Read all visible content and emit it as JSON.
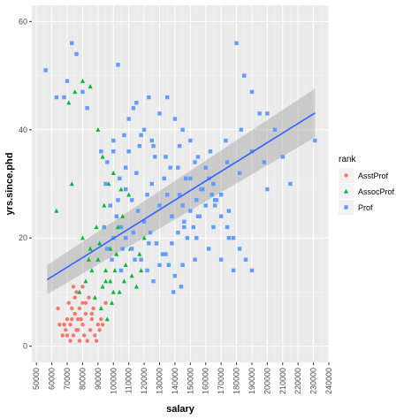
{
  "chart_data": {
    "type": "scatter",
    "xlabel": "salary",
    "ylabel": "yrs.since.phd",
    "xlim": [
      47000,
      240000
    ],
    "ylim": [
      -3,
      63
    ],
    "x_ticks": [
      "50000",
      "60000",
      "70000",
      "80000",
      "90000",
      "100000",
      "110000",
      "120000",
      "130000",
      "140000",
      "150000",
      "160000",
      "170000",
      "180000",
      "190000",
      "200000",
      "210000",
      "220000",
      "230000",
      "240000"
    ],
    "y_ticks": [
      "0",
      "20",
      "40",
      "60"
    ],
    "grid": true,
    "background": "#ebebeb",
    "legend": {
      "title": "rank",
      "position": "right",
      "entries": [
        {
          "label": "AsstProf",
          "color": "#F8766D",
          "shape": "circle"
        },
        {
          "label": "AssocProf",
          "color": "#00BA38",
          "shape": "triangle"
        },
        {
          "label": "Prof",
          "color": "#619CFF",
          "shape": "square"
        }
      ]
    },
    "trend": {
      "method": "lm",
      "color": "#3366FF",
      "x": [
        57000,
        231000
      ],
      "y": [
        12.3,
        43.1
      ],
      "ci_lower": [
        9.6,
        38.6
      ],
      "ci_upper": [
        15.0,
        47.6
      ]
    },
    "series": [
      {
        "name": "AsstProf",
        "color": "#F8766D",
        "shape": "circle",
        "points": [
          [
            72000,
            1
          ],
          [
            74000,
            2
          ],
          [
            77000,
            3
          ],
          [
            80000,
            4
          ],
          [
            70000,
            5
          ],
          [
            75000,
            6
          ],
          [
            78000,
            7
          ],
          [
            82000,
            8
          ],
          [
            85000,
            3
          ],
          [
            88000,
            2
          ],
          [
            90000,
            4
          ],
          [
            79000,
            5
          ],
          [
            73000,
            7
          ],
          [
            71000,
            8
          ],
          [
            76000,
            10
          ],
          [
            80000,
            11
          ],
          [
            74000,
            11
          ],
          [
            86000,
            6
          ],
          [
            92000,
            5
          ],
          [
            95000,
            8
          ],
          [
            83000,
            1
          ],
          [
            81000,
            2
          ],
          [
            87000,
            7
          ],
          [
            89000,
            1
          ],
          [
            69000,
            3
          ],
          [
            68000,
            4
          ],
          [
            70000,
            2
          ],
          [
            84000,
            9
          ],
          [
            91000,
            3
          ],
          [
            78000,
            1
          ],
          [
            72000,
            4
          ],
          [
            76000,
            3
          ],
          [
            64000,
            7
          ],
          [
            65000,
            4
          ],
          [
            67000,
            2
          ],
          [
            73000,
            5
          ],
          [
            75000,
            9
          ],
          [
            80000,
            8
          ],
          [
            86000,
            5
          ],
          [
            93000,
            4
          ],
          [
            82000,
            6
          ],
          [
            77000,
            5
          ]
        ]
      },
      {
        "name": "AssocProf",
        "color": "#00BA38",
        "shape": "triangle",
        "points": [
          [
            63000,
            25
          ],
          [
            71000,
            45
          ],
          [
            75000,
            47
          ],
          [
            80000,
            49
          ],
          [
            85000,
            48
          ],
          [
            90000,
            40
          ],
          [
            93000,
            35
          ],
          [
            97000,
            30
          ],
          [
            100000,
            32
          ],
          [
            105000,
            29
          ],
          [
            110000,
            28
          ],
          [
            73000,
            30
          ],
          [
            80000,
            20
          ],
          [
            85000,
            18
          ],
          [
            90000,
            16
          ],
          [
            95000,
            14
          ],
          [
            98000,
            12
          ],
          [
            100000,
            10
          ],
          [
            103000,
            22
          ],
          [
            108000,
            15
          ],
          [
            112000,
            13
          ],
          [
            115000,
            11
          ],
          [
            88000,
            9
          ],
          [
            92000,
            7
          ],
          [
            96000,
            5
          ],
          [
            99000,
            8
          ],
          [
            104000,
            10
          ],
          [
            107000,
            12
          ],
          [
            117000,
            17
          ],
          [
            120000,
            20
          ],
          [
            95000,
            12
          ],
          [
            101000,
            14
          ],
          [
            86000,
            14
          ],
          [
            82000,
            12
          ],
          [
            78000,
            10
          ],
          [
            89000,
            22
          ],
          [
            94000,
            26
          ],
          [
            106000,
            24
          ],
          [
            111000,
            18
          ],
          [
            84000,
            16
          ],
          [
            98000,
            18
          ],
          [
            102000,
            17
          ],
          [
            118000,
            14
          ],
          [
            91000,
            19
          ],
          [
            93000,
            11
          ]
        ]
      },
      {
        "name": "Prof",
        "color": "#619CFF",
        "shape": "square",
        "points": [
          [
            56000,
            51
          ],
          [
            73000,
            56
          ],
          [
            76000,
            54
          ],
          [
            63000,
            46
          ],
          [
            70000,
            49
          ],
          [
            80000,
            47
          ],
          [
            83000,
            44
          ],
          [
            68000,
            46
          ],
          [
            103000,
            52
          ],
          [
            100000,
            38
          ],
          [
            108000,
            33
          ],
          [
            110000,
            36
          ],
          [
            115000,
            45
          ],
          [
            120000,
            40
          ],
          [
            125000,
            38
          ],
          [
            130000,
            43
          ],
          [
            135000,
            46
          ],
          [
            140000,
            42
          ],
          [
            145000,
            40
          ],
          [
            150000,
            38
          ],
          [
            155000,
            35
          ],
          [
            160000,
            33
          ],
          [
            165000,
            30
          ],
          [
            170000,
            28
          ],
          [
            175000,
            25
          ],
          [
            180000,
            56
          ],
          [
            185000,
            50
          ],
          [
            190000,
            47
          ],
          [
            195000,
            43
          ],
          [
            200000,
            43
          ],
          [
            205000,
            40
          ],
          [
            210000,
            35
          ],
          [
            215000,
            30
          ],
          [
            231000,
            38
          ],
          [
            200000,
            29
          ],
          [
            95000,
            30
          ],
          [
            98000,
            26
          ],
          [
            102000,
            24
          ],
          [
            105000,
            22
          ],
          [
            108000,
            20
          ],
          [
            112000,
            18
          ],
          [
            118000,
            16
          ],
          [
            122000,
            14
          ],
          [
            126000,
            12
          ],
          [
            130000,
            15
          ],
          [
            134000,
            17
          ],
          [
            138000,
            19
          ],
          [
            142000,
            21
          ],
          [
            146000,
            23
          ],
          [
            150000,
            25
          ],
          [
            154000,
            27
          ],
          [
            158000,
            29
          ],
          [
            162000,
            31
          ],
          [
            166000,
            26
          ],
          [
            170000,
            24
          ],
          [
            174000,
            22
          ],
          [
            178000,
            20
          ],
          [
            182000,
            18
          ],
          [
            186000,
            16
          ],
          [
            190000,
            14
          ],
          [
            96000,
            34
          ],
          [
            100000,
            36
          ],
          [
            104000,
            31
          ],
          [
            108000,
            29
          ],
          [
            112000,
            27
          ],
          [
            116000,
            25
          ],
          [
            120000,
            23
          ],
          [
            124000,
            21
          ],
          [
            128000,
            19
          ],
          [
            132000,
            17
          ],
          [
            136000,
            15
          ],
          [
            140000,
            13
          ],
          [
            144000,
            11
          ],
          [
            148000,
            20
          ],
          [
            152000,
            22
          ],
          [
            156000,
            24
          ],
          [
            160000,
            26
          ],
          [
            164000,
            28
          ],
          [
            110000,
            42
          ],
          [
            118000,
            39
          ],
          [
            126000,
            37
          ],
          [
            134000,
            35
          ],
          [
            142000,
            33
          ],
          [
            150000,
            31
          ],
          [
            158000,
            29
          ],
          [
            166000,
            27
          ],
          [
            174000,
            34
          ],
          [
            182000,
            32
          ],
          [
            190000,
            36
          ],
          [
            198000,
            34
          ],
          [
            100000,
            20
          ],
          [
            106000,
            18
          ],
          [
            114000,
            16
          ],
          [
            122000,
            28
          ],
          [
            130000,
            26
          ],
          [
            138000,
            24
          ],
          [
            146000,
            22
          ],
          [
            154000,
            20
          ],
          [
            162000,
            18
          ],
          [
            170000,
            16
          ],
          [
            178000,
            14
          ],
          [
            105000,
            14
          ],
          [
            115000,
            32
          ],
          [
            125000,
            30
          ],
          [
            135000,
            28
          ],
          [
            145000,
            26
          ],
          [
            155000,
            24
          ],
          [
            165000,
            22
          ],
          [
            175000,
            20
          ],
          [
            107000,
            39
          ],
          [
            117000,
            37
          ],
          [
            127000,
            35
          ],
          [
            137000,
            33
          ],
          [
            147000,
            31
          ],
          [
            157000,
            29
          ],
          [
            167000,
            27
          ],
          [
            92000,
            36
          ],
          [
            94000,
            22
          ],
          [
            96000,
            18
          ],
          [
            99000,
            16
          ],
          [
            103000,
            27
          ],
          [
            113000,
            21
          ],
          [
            123000,
            19
          ],
          [
            133000,
            31
          ],
          [
            143000,
            37
          ],
          [
            153000,
            34
          ],
          [
            163000,
            36
          ],
          [
            173000,
            38
          ],
          [
            183000,
            40
          ],
          [
            113000,
            44
          ],
          [
            123000,
            46
          ],
          [
            143000,
            28
          ],
          [
            153000,
            16
          ],
          [
            139000,
            10
          ],
          [
            145000,
            15
          ]
        ]
      }
    ]
  }
}
